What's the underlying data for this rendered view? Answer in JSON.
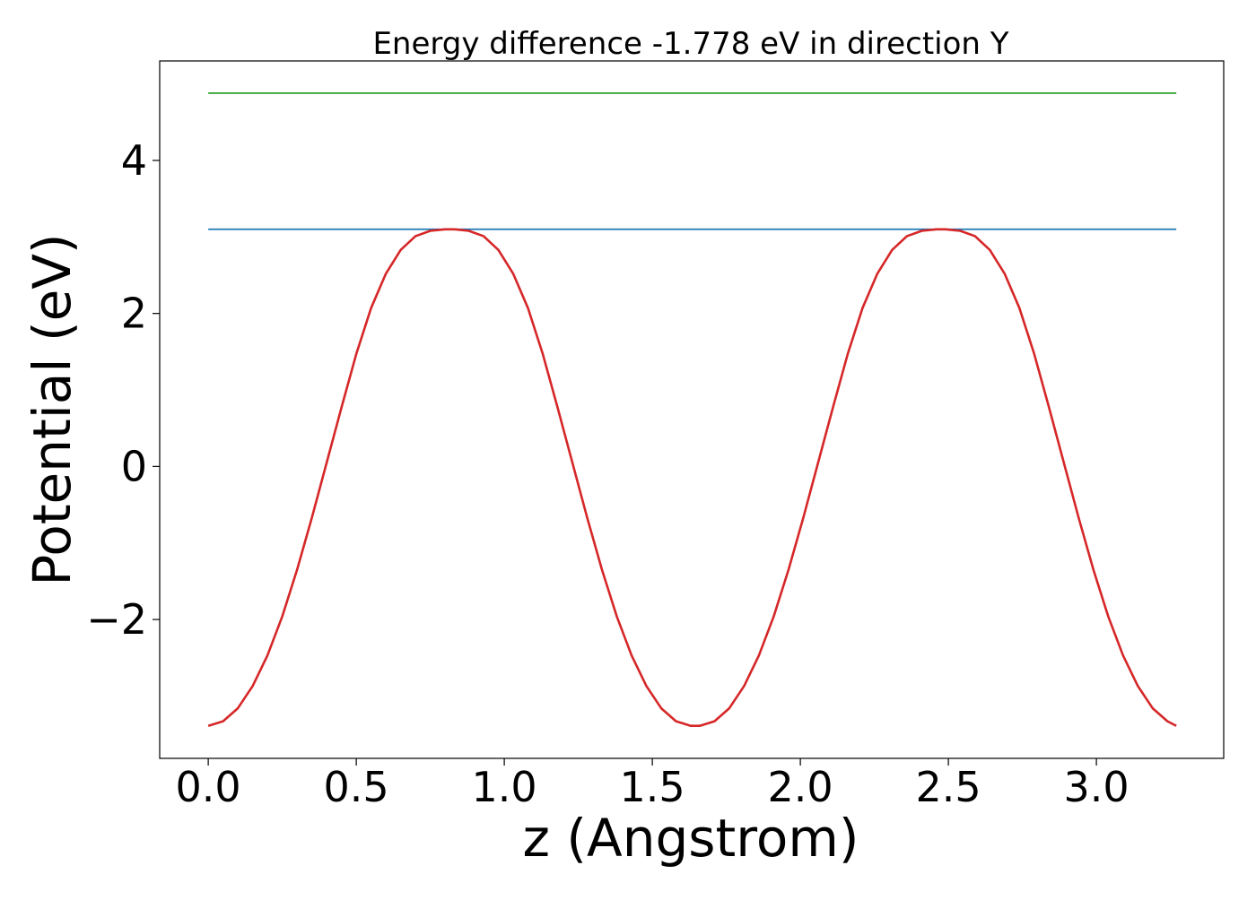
{
  "chart_data": {
    "type": "line",
    "title": "Energy difference -1.778 eV in direction Y",
    "xlabel": "z (Angstrom)",
    "ylabel": "Potential (eV)",
    "xlim": [
      -0.164,
      3.43
    ],
    "ylim": [
      -3.815,
      5.3
    ],
    "xticks": [
      {
        "value": 0.0,
        "label": "0.0"
      },
      {
        "value": 0.5,
        "label": "0.5"
      },
      {
        "value": 1.0,
        "label": "1.0"
      },
      {
        "value": 1.5,
        "label": "1.5"
      },
      {
        "value": 2.0,
        "label": "2.0"
      },
      {
        "value": 2.5,
        "label": "2.5"
      },
      {
        "value": 3.0,
        "label": "3.0"
      }
    ],
    "yticks": [
      {
        "value": -2,
        "label": "−2"
      },
      {
        "value": 0,
        "label": "0"
      },
      {
        "value": 2,
        "label": "2"
      },
      {
        "value": 4,
        "label": "4"
      }
    ],
    "grid": false,
    "legend": "none",
    "series": [
      {
        "color": "#2ca02c",
        "x": [
          0.0,
          3.27
        ],
        "y": [
          4.88,
          4.88
        ]
      },
      {
        "color": "#1f77b4",
        "x": [
          0.0,
          3.27
        ],
        "y": [
          3.1,
          3.1
        ]
      },
      {
        "color": "#d62728",
        "x": [
          0.0,
          0.05,
          0.1,
          0.15,
          0.2,
          0.25,
          0.3,
          0.35,
          0.4,
          0.45,
          0.5,
          0.55,
          0.6,
          0.65,
          0.7,
          0.75,
          0.8,
          0.83,
          0.88,
          0.93,
          0.98,
          1.03,
          1.08,
          1.13,
          1.18,
          1.23,
          1.28,
          1.33,
          1.38,
          1.43,
          1.48,
          1.53,
          1.58,
          1.63,
          1.66,
          1.71,
          1.76,
          1.81,
          1.86,
          1.91,
          1.96,
          2.01,
          2.06,
          2.11,
          2.16,
          2.21,
          2.26,
          2.31,
          2.36,
          2.41,
          2.46,
          2.49,
          2.54,
          2.59,
          2.64,
          2.69,
          2.74,
          2.79,
          2.84,
          2.89,
          2.94,
          2.99,
          3.04,
          3.09,
          3.14,
          3.19,
          3.24,
          3.27
        ],
        "y": [
          -3.39,
          -3.33,
          -3.16,
          -2.87,
          -2.47,
          -1.96,
          -1.35,
          -0.67,
          0.05,
          0.77,
          1.47,
          2.07,
          2.52,
          2.83,
          3.01,
          3.08,
          3.1,
          3.1,
          3.08,
          3.01,
          2.83,
          2.52,
          2.07,
          1.47,
          0.77,
          0.05,
          -0.67,
          -1.35,
          -1.96,
          -2.47,
          -2.87,
          -3.16,
          -3.33,
          -3.39,
          -3.39,
          -3.33,
          -3.16,
          -2.87,
          -2.47,
          -1.96,
          -1.35,
          -0.67,
          0.05,
          0.77,
          1.47,
          2.07,
          2.52,
          2.83,
          3.01,
          3.08,
          3.1,
          3.1,
          3.08,
          3.01,
          2.83,
          2.52,
          2.07,
          1.47,
          0.77,
          0.05,
          -0.67,
          -1.35,
          -1.96,
          -2.47,
          -2.87,
          -3.16,
          -3.33,
          -3.39
        ]
      }
    ]
  }
}
